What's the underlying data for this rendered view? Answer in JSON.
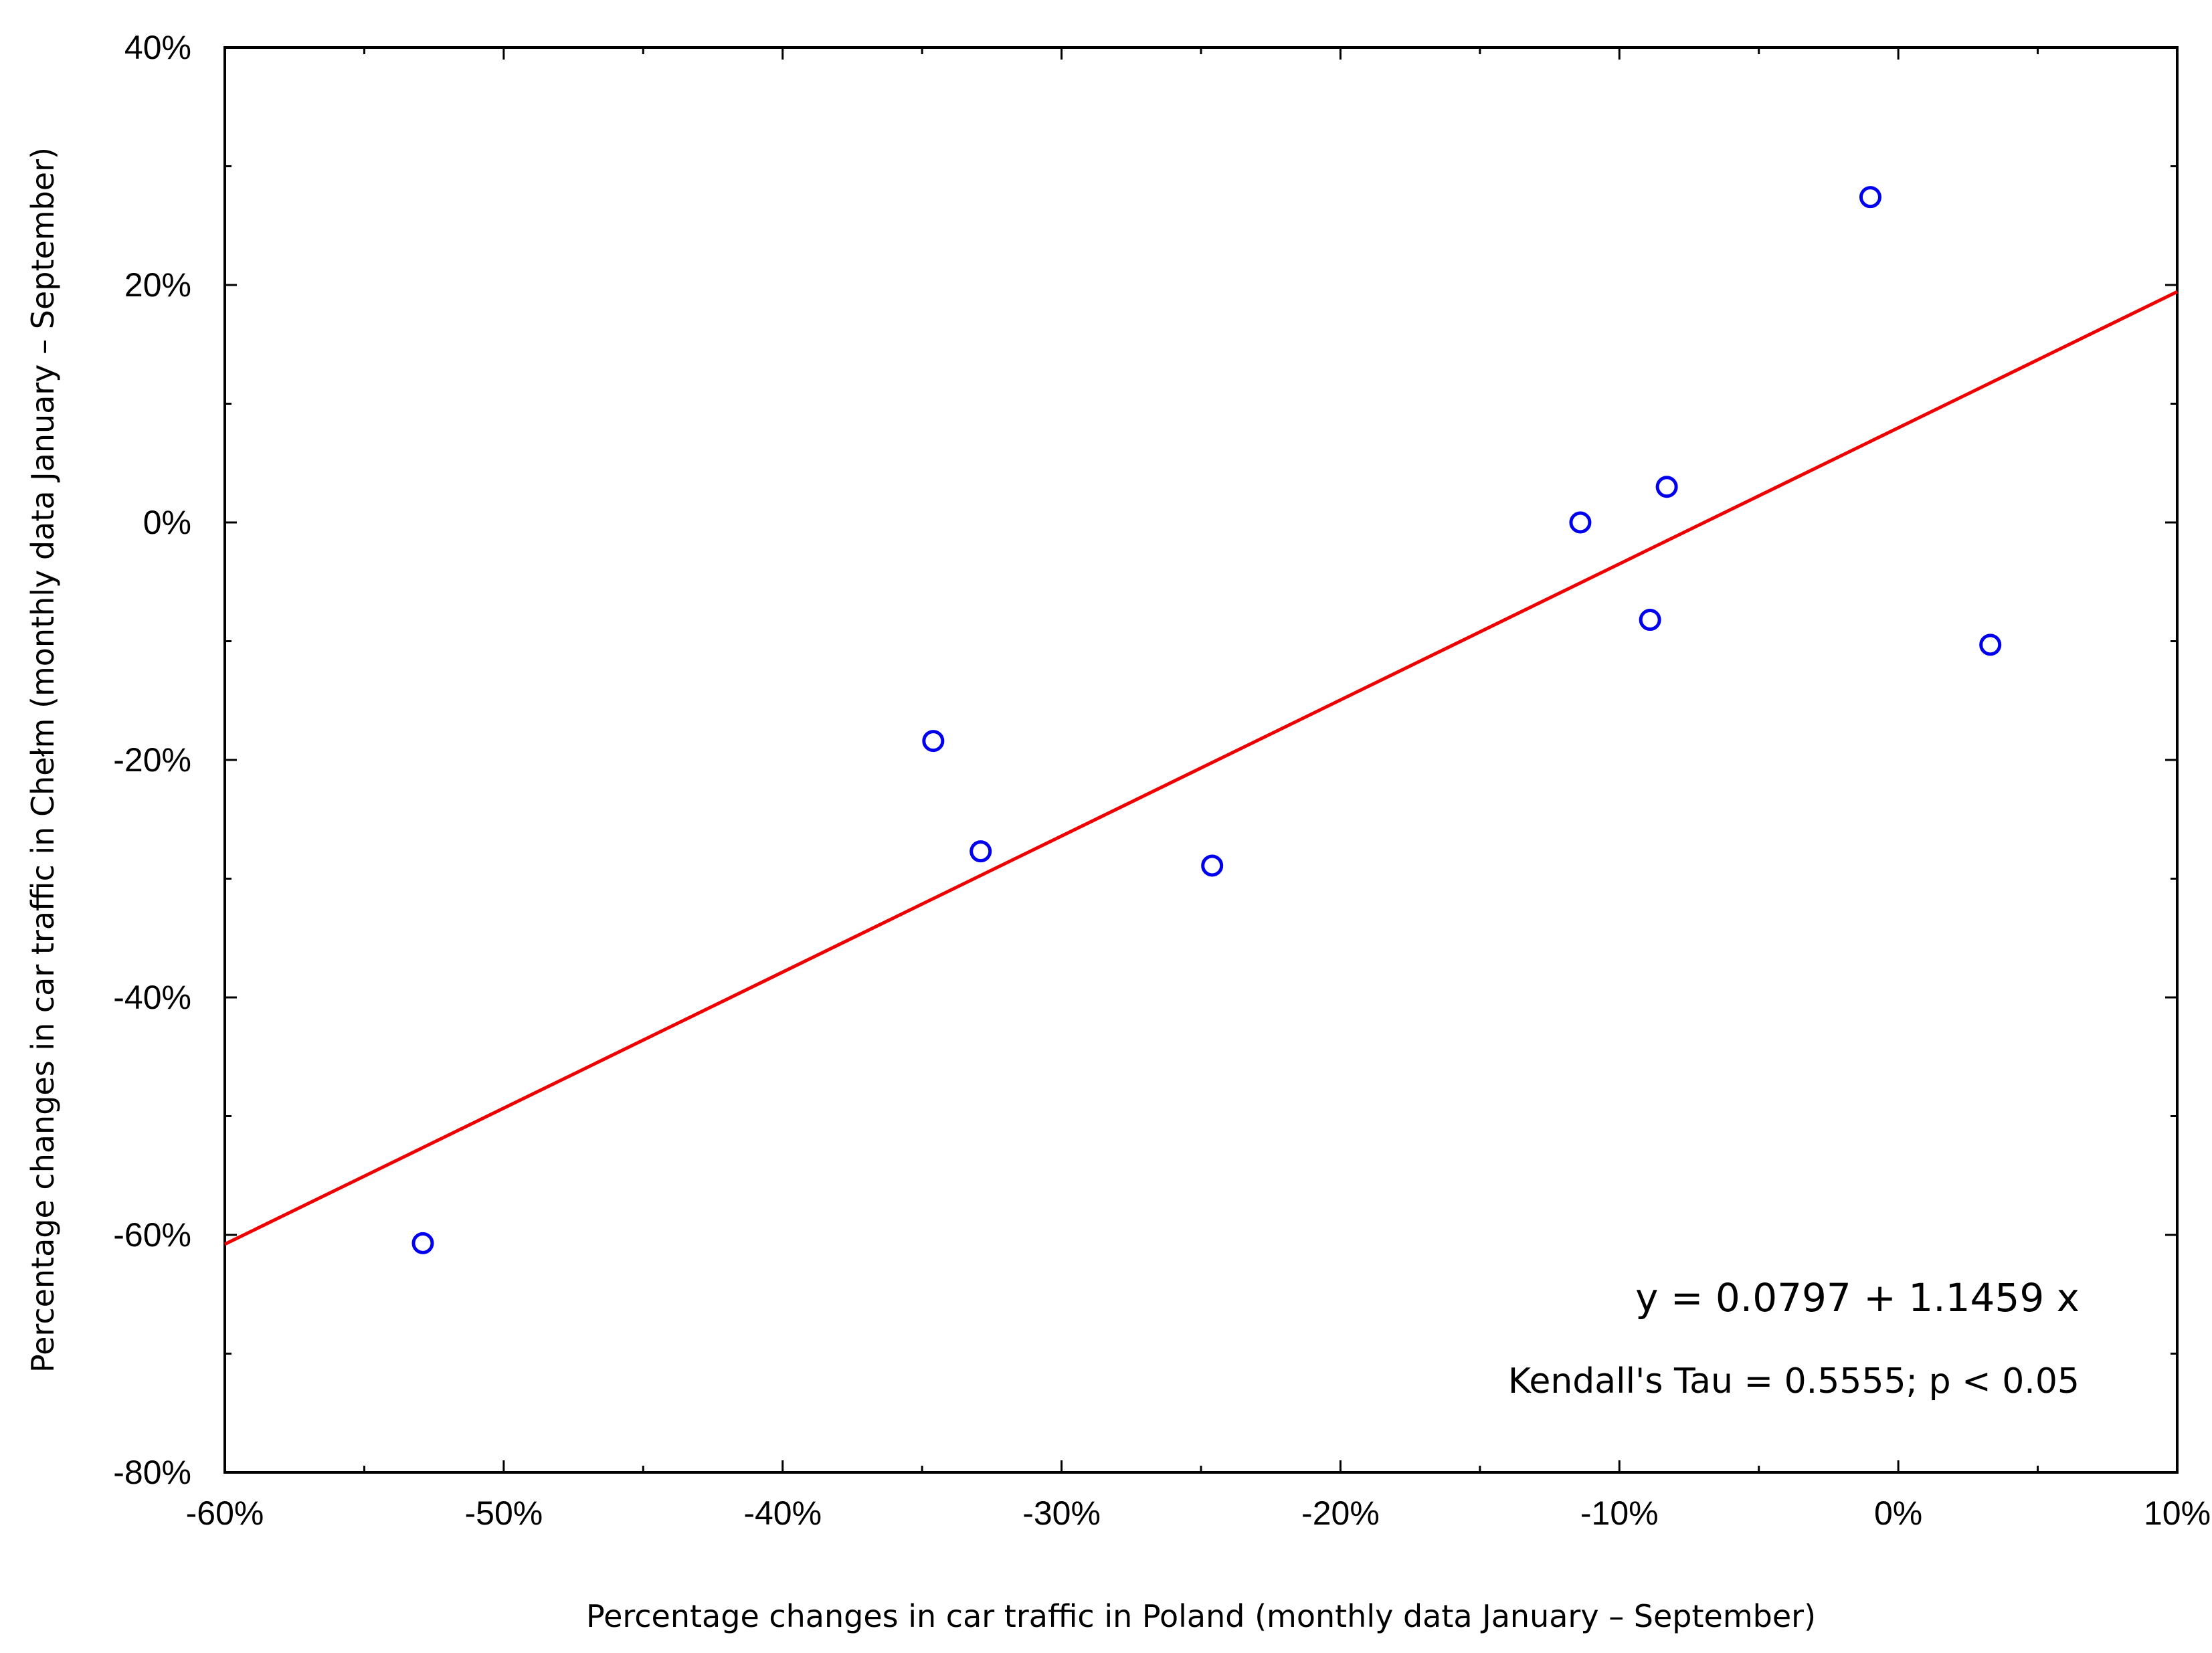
{
  "chart_data": {
    "type": "scatter",
    "xlabel": "Percentage changes in car traffic in Poland (monthly data January – September)",
    "ylabel": "Percentage changes in car traffic in Chełm (monthly data January – September)",
    "xlim": [
      -0.6,
      0.1
    ],
    "ylim": [
      -0.8,
      0.4
    ],
    "x_ticks": [
      -0.6,
      -0.5,
      -0.4,
      -0.3,
      -0.2,
      -0.1,
      0.0,
      0.1
    ],
    "x_tick_labels": [
      "-60%",
      "-50%",
      "-40%",
      "-30%",
      "-20%",
      "-10%",
      "0%",
      "10%"
    ],
    "y_ticks": [
      -0.8,
      -0.6,
      -0.4,
      -0.2,
      0.0,
      0.2,
      0.4
    ],
    "y_tick_labels": [
      "-80%",
      "-60%",
      "-40%",
      "-20%",
      "0%",
      "20%",
      "40%"
    ],
    "grid": false,
    "points": [
      {
        "x": -0.529,
        "y": -0.607
      },
      {
        "x": -0.346,
        "y": -0.184
      },
      {
        "x": -0.329,
        "y": -0.277
      },
      {
        "x": -0.246,
        "y": -0.289
      },
      {
        "x": -0.114,
        "y": 0.0
      },
      {
        "x": -0.089,
        "y": -0.082
      },
      {
        "x": -0.083,
        "y": 0.03
      },
      {
        "x": -0.01,
        "y": 0.274
      },
      {
        "x": 0.033,
        "y": -0.103
      }
    ],
    "regression": {
      "intercept": 0.0797,
      "slope": 1.1459
    },
    "annotations": [
      "y = 0.0797 + 1.1459 x",
      "Kendall's Tau = 0.5555; p < 0.05"
    ],
    "colors": {
      "points": "#0000ee",
      "fit_line": "#ee0000",
      "axes": "#000000"
    }
  }
}
